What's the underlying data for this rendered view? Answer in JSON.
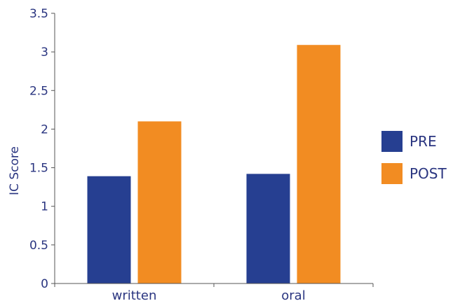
{
  "chart_data": {
    "type": "bar",
    "categories": [
      "written",
      "oral"
    ],
    "series": [
      {
        "name": "PRE",
        "values": [
          1.39,
          1.42
        ],
        "color": "#263f91"
      },
      {
        "name": "POST",
        "values": [
          2.1,
          3.09
        ],
        "color": "#f28c22"
      }
    ],
    "ylabel": "IC Score",
    "xlabel": "",
    "ylim": [
      0,
      3.5
    ],
    "yticks": [
      "0",
      "0.5",
      "1",
      "1.5",
      "2",
      "2.5",
      "3",
      "3.5"
    ],
    "grid": false,
    "legend_position": "right"
  }
}
